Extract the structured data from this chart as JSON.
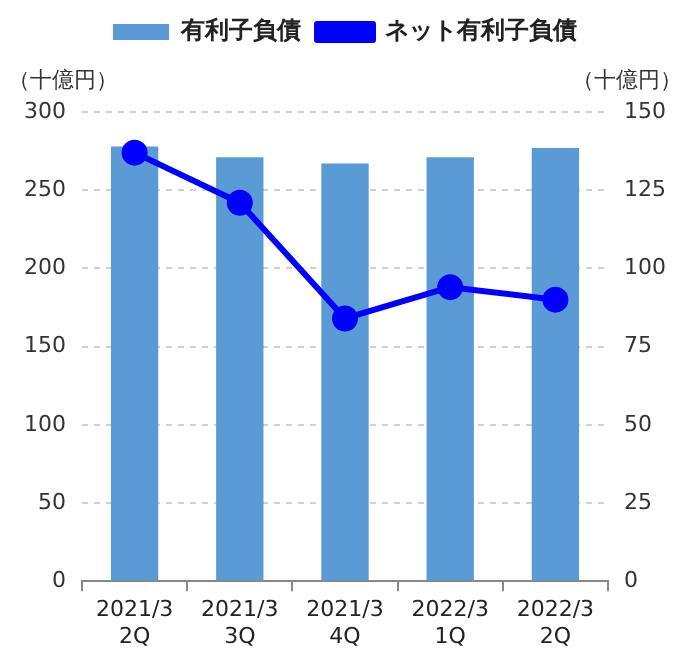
{
  "chart_data": {
    "type": "bar",
    "categories": [
      "2021/3\n2Q",
      "2021/3\n3Q",
      "2021/3\n4Q",
      "2022/3\n1Q",
      "2022/3\n2Q"
    ],
    "series": [
      {
        "name": "有利子負債",
        "color": "#5b9bd5",
        "values": [
          278,
          271,
          267,
          271,
          277
        ]
      },
      {
        "name": "ネット有利子負債",
        "type": "line",
        "axis": "y2",
        "color": "#0000ff",
        "values": [
          137,
          121,
          84,
          94,
          90
        ]
      }
    ],
    "ylabel": "（十億円）",
    "y2label": "（十億円）",
    "ylim": [
      0,
      300
    ],
    "yticks": [
      0,
      50,
      100,
      150,
      200,
      250,
      300
    ],
    "y2lim": [
      0,
      150
    ],
    "y2ticks": [
      0,
      25,
      50,
      75,
      100,
      125,
      150
    ],
    "grid": "y",
    "legend": "top",
    "marker": "circle",
    "line_style": "solid"
  }
}
